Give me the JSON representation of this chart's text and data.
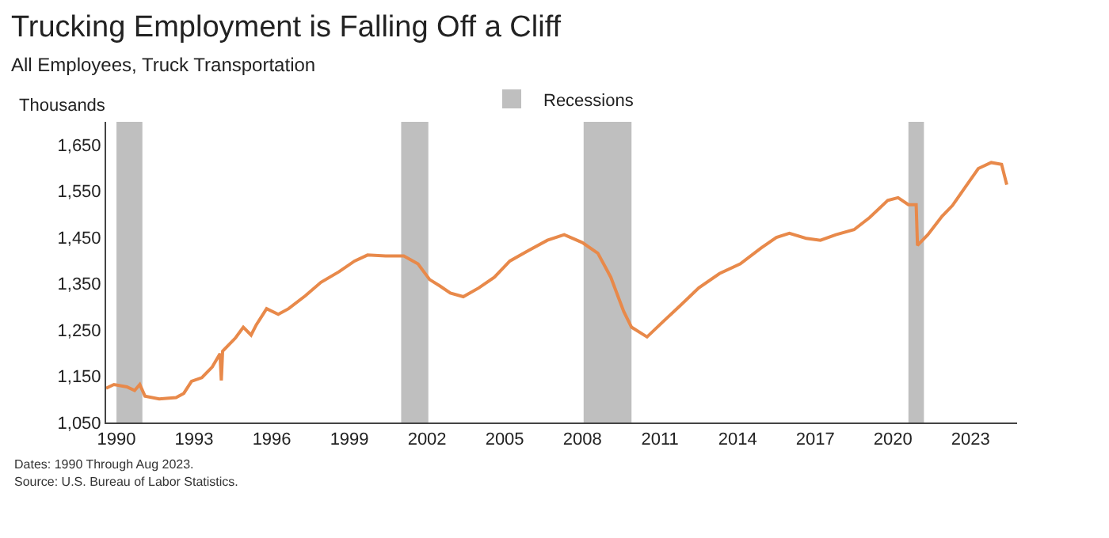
{
  "chart_data": {
    "type": "line",
    "title": "Trucking Employment is Falling Off a Cliff",
    "subtitle": "All Employees, Truck Transportation",
    "ylabel": "Thousands",
    "x": [
      1989.6,
      1989.9,
      1990.4,
      1990.7,
      1990.9,
      1991.1,
      1991.65,
      1992.3,
      1992.6,
      1992.9,
      1993.3,
      1993.7,
      1994.0,
      1994.05,
      1994.1,
      1994.6,
      1994.9,
      1995.2,
      1995.4,
      1995.8,
      1996.25,
      1996.65,
      1997.3,
      1997.9,
      1998.6,
      1999.2,
      1999.7,
      2000.4,
      2001.1,
      2001.65,
      2002.1,
      2002.5,
      2002.9,
      2003.4,
      2004.0,
      2004.6,
      2005.2,
      2005.9,
      2006.65,
      2007.3,
      2008.0,
      2008.6,
      2009.1,
      2009.6,
      2009.9,
      2010.5,
      2011.1,
      2011.75,
      2012.5,
      2013.3,
      2014.1,
      2014.9,
      2015.5,
      2016.0,
      2016.65,
      2017.2,
      2017.8,
      2018.5,
      2019.1,
      2019.8,
      2020.2,
      2020.6,
      2020.9,
      2020.95,
      2021.35,
      2021.9,
      2022.3,
      2022.8,
      2023.3,
      2023.8,
      2024.2,
      2024.4
    ],
    "series": [
      {
        "color": "#e8894a",
        "values": [
          1124,
          1132,
          1127,
          1119,
          1132,
          1107,
          1101,
          1104,
          1113,
          1139,
          1147,
          1170,
          1199,
          1141,
          1204,
          1233,
          1256,
          1239,
          1261,
          1296,
          1284,
          1296,
          1324,
          1353,
          1376,
          1399,
          1412,
          1410,
          1410,
          1393,
          1359,
          1345,
          1330,
          1322,
          1341,
          1364,
          1399,
          1421,
          1444,
          1456,
          1439,
          1416,
          1364,
          1290,
          1256,
          1235,
          1267,
          1301,
          1341,
          1372,
          1393,
          1427,
          1450,
          1459,
          1448,
          1444,
          1456,
          1467,
          1493,
          1530,
          1536,
          1521,
          1521,
          1433,
          1456,
          1496,
          1519,
          1559,
          1599,
          1612,
          1608,
          1564
        ]
      }
    ],
    "xlim": [
      1989.6,
      2024.8
    ],
    "xticks": [
      1990,
      1993,
      1996,
      1999,
      2002,
      2005,
      2008,
      2011,
      2014,
      2017,
      2020,
      2023
    ],
    "ylim": [
      1050,
      1700
    ],
    "yticks": [
      {
        "value": 1050,
        "label": "1,050"
      },
      {
        "value": 1150,
        "label": "1,150"
      },
      {
        "value": 1250,
        "label": "1,250"
      },
      {
        "value": 1350,
        "label": "1,350"
      },
      {
        "value": 1450,
        "label": "1,450"
      },
      {
        "value": 1550,
        "label": "1,550"
      },
      {
        "value": 1650,
        "label": "1,650"
      }
    ],
    "bands": [
      {
        "axis": "x",
        "from": 1990.0,
        "to": 1991.0,
        "label": "Recessions",
        "color": "#bfbfbf"
      },
      {
        "axis": "x",
        "from": 2001.0,
        "to": 2002.05,
        "color": "#bfbfbf"
      },
      {
        "axis": "x",
        "from": 2008.05,
        "to": 2009.9,
        "color": "#bfbfbf"
      },
      {
        "axis": "x",
        "from": 2020.6,
        "to": 2021.2,
        "color": "#bfbfbf"
      }
    ],
    "annotations": [
      "Dates: 1990 Through Aug 2023.",
      "Source: U.S. Bureau of Labor Statistics."
    ],
    "grid": false,
    "legend": "top",
    "marker": "none",
    "line_style": "solid"
  }
}
